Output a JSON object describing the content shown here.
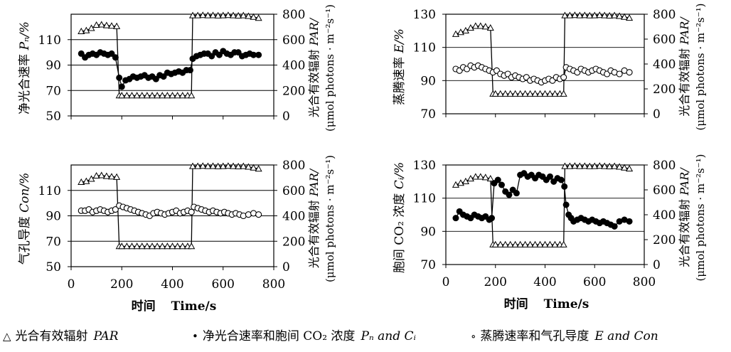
{
  "figure": {
    "x_axis": {
      "range": [
        0,
        800
      ],
      "ticks": [
        "0",
        "200",
        "400",
        "600",
        "800"
      ],
      "label_cn": "时间",
      "label_en": "Time/s"
    },
    "par_axis": {
      "range": [
        0,
        800
      ],
      "ticks": [
        "0",
        "200",
        "400",
        "600",
        "800"
      ],
      "label_line1": "光合有效辐射",
      "label_line1_italic": "PAR/",
      "label_line2": "(μmol photons · m⁻²s⁻¹)"
    },
    "legend": {
      "par": {
        "symbol": "△",
        "text": "光合有效辐射",
        "italic": "PAR"
      },
      "pn_ci": {
        "symbol": "•",
        "text": "净光合速率和胞间 CO₂ 浓度",
        "italic": "Pₙ and Cᵢ"
      },
      "e_con": {
        "symbol": "∘",
        "text": "蒸腾速率和气孔导度",
        "italic": "E and Con"
      }
    },
    "colors": {
      "line": "#000000",
      "marker_fill": "#000000",
      "open_fill": "#ffffff",
      "grid": "#000000"
    }
  },
  "chart_data": [
    {
      "type": "line",
      "panel": "top-left",
      "ylabel_cn": "净光合速率",
      "ylabel_var": "Pₙ/%",
      "ylim": [
        50,
        130
      ],
      "yticks": [
        "50",
        "70",
        "90",
        "110"
      ],
      "hlines": [
        70,
        90,
        110
      ],
      "series": [
        {
          "name": "PAR",
          "marker": "open-triangle",
          "axis": "right",
          "x": [
            40,
            60,
            80,
            100,
            120,
            140,
            160,
            180,
            190,
            200,
            220,
            240,
            260,
            280,
            300,
            320,
            340,
            360,
            380,
            400,
            420,
            440,
            460,
            475,
            480,
            500,
            520,
            540,
            560,
            580,
            600,
            620,
            640,
            660,
            680,
            700,
            720,
            740
          ],
          "y": [
            665,
            672,
            690,
            715,
            718,
            712,
            708,
            705,
            160,
            160,
            160,
            160,
            160,
            160,
            160,
            160,
            160,
            160,
            160,
            160,
            160,
            160,
            160,
            160,
            790,
            790,
            792,
            790,
            791,
            789,
            790,
            792,
            790,
            788,
            790,
            785,
            778,
            770
          ]
        },
        {
          "name": "Pn",
          "marker": "filled-circle",
          "axis": "left",
          "x": [
            40,
            55,
            70,
            85,
            100,
            115,
            130,
            145,
            160,
            175,
            190,
            200,
            215,
            230,
            245,
            260,
            275,
            290,
            305,
            320,
            335,
            350,
            365,
            380,
            395,
            410,
            425,
            440,
            455,
            470,
            480,
            495,
            510,
            525,
            540,
            555,
            570,
            585,
            600,
            615,
            630,
            645,
            660,
            675,
            690,
            705,
            720,
            740
          ],
          "y": [
            99,
            96,
            98,
            99,
            98,
            100,
            99,
            98,
            99,
            96,
            80,
            73,
            78,
            79,
            81,
            80,
            81,
            82,
            80,
            81,
            79,
            82,
            81,
            84,
            83,
            84,
            85,
            84,
            86,
            86,
            95,
            97,
            98,
            99,
            99,
            97,
            100,
            98,
            101,
            99,
            98,
            100,
            100,
            97,
            98,
            99,
            98,
            98
          ]
        }
      ]
    },
    {
      "type": "line",
      "panel": "top-right",
      "ylabel_cn": "蒸腾速率",
      "ylabel_var": "E/%",
      "ylim": [
        70,
        130
      ],
      "yticks": [
        "70",
        "90",
        "110",
        "130"
      ],
      "hlines": [
        90,
        110
      ],
      "series": [
        {
          "name": "PAR",
          "marker": "open-triangle",
          "axis": "right",
          "x": [
            40,
            60,
            80,
            100,
            120,
            140,
            160,
            180,
            190,
            200,
            220,
            240,
            260,
            280,
            300,
            320,
            340,
            360,
            380,
            400,
            420,
            440,
            460,
            475,
            480,
            500,
            520,
            540,
            560,
            580,
            600,
            620,
            640,
            660,
            680,
            700,
            720,
            740
          ],
          "y": [
            640,
            655,
            668,
            690,
            705,
            705,
            700,
            690,
            160,
            160,
            160,
            160,
            160,
            160,
            160,
            160,
            160,
            160,
            160,
            160,
            160,
            160,
            160,
            160,
            790,
            790,
            792,
            790,
            791,
            789,
            790,
            792,
            790,
            788,
            790,
            785,
            778,
            770
          ]
        },
        {
          "name": "E",
          "marker": "open-circle",
          "axis": "left",
          "x": [
            40,
            55,
            70,
            85,
            100,
            115,
            130,
            145,
            160,
            175,
            190,
            205,
            220,
            235,
            250,
            265,
            280,
            295,
            310,
            325,
            340,
            355,
            370,
            385,
            400,
            415,
            430,
            445,
            460,
            475,
            485,
            500,
            515,
            530,
            545,
            560,
            575,
            590,
            605,
            620,
            635,
            650,
            665,
            680,
            700,
            720,
            740
          ],
          "y": [
            97,
            96,
            98,
            97,
            99,
            98,
            99,
            98,
            97,
            96,
            95,
            96,
            94,
            93,
            94,
            92,
            93,
            92,
            91,
            92,
            90,
            91,
            90,
            89,
            90,
            91,
            90,
            92,
            91,
            92,
            98,
            97,
            96,
            95,
            97,
            96,
            95,
            96,
            97,
            96,
            95,
            94,
            96,
            95,
            94,
            96,
            95
          ]
        }
      ]
    },
    {
      "type": "line",
      "panel": "bottom-left",
      "ylabel_cn": "气孔导度",
      "ylabel_var": "Con/%",
      "ylim": [
        50,
        130
      ],
      "yticks": [
        "50",
        "70",
        "90",
        "110"
      ],
      "hlines": [
        70,
        90,
        110
      ],
      "series": [
        {
          "name": "PAR",
          "marker": "open-triangle",
          "axis": "right",
          "x": [
            40,
            60,
            80,
            100,
            120,
            140,
            160,
            180,
            190,
            200,
            220,
            240,
            260,
            280,
            300,
            320,
            340,
            360,
            380,
            400,
            420,
            440,
            460,
            475,
            480,
            500,
            520,
            540,
            560,
            580,
            600,
            620,
            640,
            660,
            680,
            700,
            720,
            740
          ],
          "y": [
            665,
            672,
            690,
            715,
            718,
            712,
            708,
            705,
            160,
            160,
            160,
            160,
            160,
            160,
            160,
            160,
            160,
            160,
            160,
            160,
            160,
            160,
            160,
            160,
            790,
            790,
            792,
            790,
            791,
            789,
            790,
            792,
            790,
            788,
            790,
            785,
            778,
            770
          ]
        },
        {
          "name": "Con",
          "marker": "open-circle",
          "axis": "left",
          "x": [
            40,
            55,
            70,
            85,
            100,
            115,
            130,
            145,
            160,
            175,
            190,
            205,
            220,
            235,
            250,
            265,
            280,
            295,
            310,
            325,
            340,
            355,
            370,
            385,
            400,
            415,
            430,
            445,
            460,
            475,
            485,
            500,
            515,
            530,
            545,
            560,
            575,
            590,
            605,
            620,
            635,
            650,
            665,
            680,
            700,
            720,
            740
          ],
          "y": [
            94,
            94,
            95,
            93,
            94,
            95,
            94,
            93,
            94,
            95,
            98,
            97,
            96,
            95,
            94,
            93,
            92,
            91,
            90,
            92,
            93,
            92,
            91,
            92,
            93,
            94,
            92,
            93,
            94,
            93,
            97,
            96,
            95,
            94,
            93,
            94,
            93,
            92,
            93,
            92,
            91,
            92,
            91,
            90,
            91,
            92,
            91
          ]
        }
      ]
    },
    {
      "type": "line",
      "panel": "bottom-right",
      "ylabel_cn": "胞间 CO₂ 浓度",
      "ylabel_var": "Cᵢ/%",
      "ylim": [
        70,
        130
      ],
      "yticks": [
        "70",
        "90",
        "110",
        "130"
      ],
      "hlines": [
        90,
        110
      ],
      "series": [
        {
          "name": "PAR",
          "marker": "open-triangle",
          "axis": "right",
          "x": [
            40,
            60,
            80,
            100,
            120,
            140,
            160,
            180,
            190,
            200,
            220,
            240,
            260,
            280,
            300,
            320,
            340,
            360,
            380,
            400,
            420,
            440,
            460,
            475,
            480,
            500,
            520,
            540,
            560,
            580,
            600,
            620,
            640,
            660,
            680,
            700,
            720,
            740
          ],
          "y": [
            640,
            655,
            668,
            690,
            705,
            705,
            700,
            690,
            160,
            160,
            160,
            160,
            160,
            160,
            160,
            160,
            160,
            160,
            160,
            160,
            160,
            160,
            160,
            160,
            790,
            790,
            792,
            790,
            791,
            789,
            790,
            792,
            790,
            788,
            790,
            785,
            778,
            770
          ]
        },
        {
          "name": "Ci",
          "marker": "filled-circle",
          "axis": "left",
          "x": [
            40,
            55,
            70,
            85,
            100,
            115,
            130,
            145,
            160,
            175,
            185,
            195,
            210,
            225,
            240,
            255,
            270,
            285,
            300,
            315,
            330,
            345,
            360,
            375,
            390,
            405,
            420,
            435,
            450,
            465,
            478,
            485,
            495,
            505,
            515,
            530,
            545,
            560,
            575,
            590,
            605,
            620,
            635,
            650,
            665,
            680,
            700,
            720,
            740
          ],
          "y": [
            98,
            102,
            100,
            99,
            98,
            100,
            99,
            98,
            99,
            97,
            98,
            119,
            121,
            118,
            114,
            112,
            115,
            113,
            124,
            125,
            123,
            124,
            122,
            124,
            123,
            121,
            123,
            120,
            122,
            121,
            117,
            106,
            100,
            98,
            96,
            97,
            98,
            97,
            96,
            97,
            96,
            95,
            96,
            95,
            94,
            93,
            96,
            97,
            96
          ]
        }
      ]
    }
  ]
}
